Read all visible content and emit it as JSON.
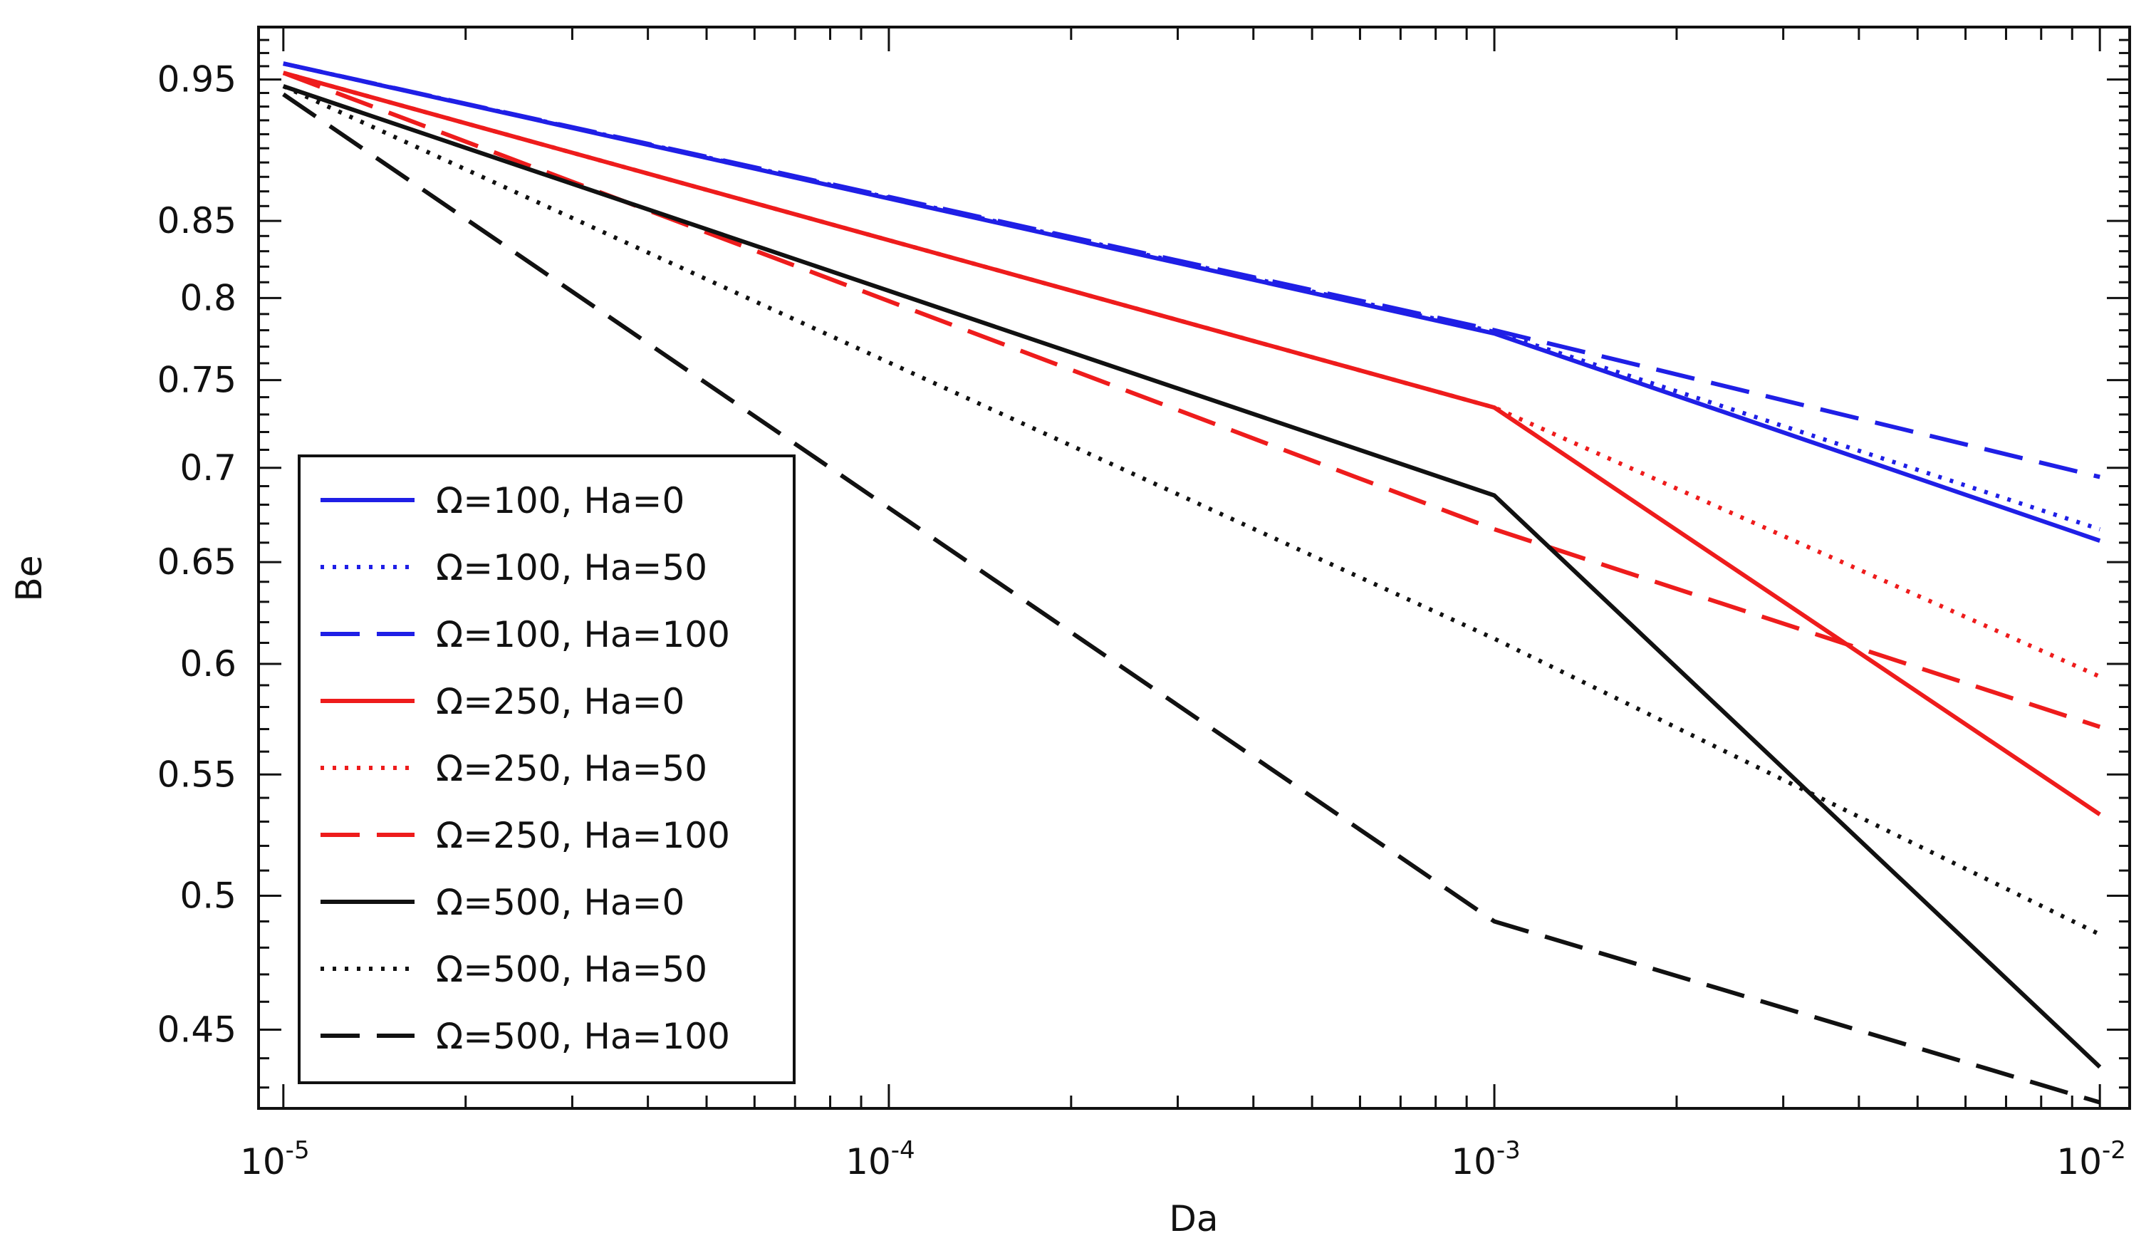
{
  "chart_data": {
    "type": "line",
    "title": "",
    "xlabel": "Da",
    "ylabel": "Be",
    "xscale": "log",
    "yscale": "log",
    "x": [
      1e-05,
      0.001,
      0.01
    ],
    "xlim": [
      9.1e-06,
      0.0112
    ],
    "ylim": [
      0.423,
      0.99
    ],
    "xticks": [
      {
        "base": "10",
        "exp": "-5",
        "value": 1e-05
      },
      {
        "base": "10",
        "exp": "-4",
        "value": 0.0001
      },
      {
        "base": "10",
        "exp": "-3",
        "value": 0.001
      },
      {
        "base": "10",
        "exp": "-2",
        "value": 0.01
      }
    ],
    "yticks": [
      {
        "label": "0.95",
        "value": 0.95
      },
      {
        "label": "0.85",
        "value": 0.85
      },
      {
        "label": "0.8",
        "value": 0.8
      },
      {
        "label": "0.75",
        "value": 0.75
      },
      {
        "label": "0.7",
        "value": 0.7
      },
      {
        "label": "0.65",
        "value": 0.65
      },
      {
        "label": "0.6",
        "value": 0.6
      },
      {
        "label": "0.55",
        "value": 0.55
      },
      {
        "label": "0.5",
        "value": 0.5
      },
      {
        "label": "0.45",
        "value": 0.45
      }
    ],
    "legend_position": "bottom-left",
    "grid": false,
    "series": [
      {
        "name": "Ω=100, Ha=0",
        "color": "#1f1fe6",
        "dash": "solid",
        "values": [
          0.962,
          0.778,
          0.661
        ]
      },
      {
        "name": "Ω=100, Ha=50",
        "color": "#1f1fe6",
        "dash": "dotted",
        "values": [
          0.962,
          0.779,
          0.667
        ]
      },
      {
        "name": "Ω=100, Ha=100",
        "color": "#1f1fe6",
        "dash": "dashed",
        "values": [
          0.962,
          0.78,
          0.695
        ]
      },
      {
        "name": "Ω=250, Ha=0",
        "color": "#ee1c1c",
        "dash": "solid",
        "values": [
          0.955,
          0.734,
          0.533
        ]
      },
      {
        "name": "Ω=250, Ha=50",
        "color": "#ee1c1c",
        "dash": "dotted",
        "values": [
          0.955,
          0.734,
          0.594
        ]
      },
      {
        "name": "Ω=250, Ha=100",
        "color": "#ee1c1c",
        "dash": "dashed",
        "values": [
          0.955,
          0.667,
          0.571
        ]
      },
      {
        "name": "Ω=500, Ha=0",
        "color": "#111111",
        "dash": "solid",
        "values": [
          0.945,
          0.685,
          0.437
        ]
      },
      {
        "name": "Ω=500, Ha=50",
        "color": "#111111",
        "dash": "dotted",
        "values": [
          0.945,
          0.612,
          0.485
        ]
      },
      {
        "name": "Ω=500, Ha=100",
        "color": "#111111",
        "dash": "dashed",
        "values": [
          0.939,
          0.49,
          0.425
        ]
      }
    ]
  }
}
